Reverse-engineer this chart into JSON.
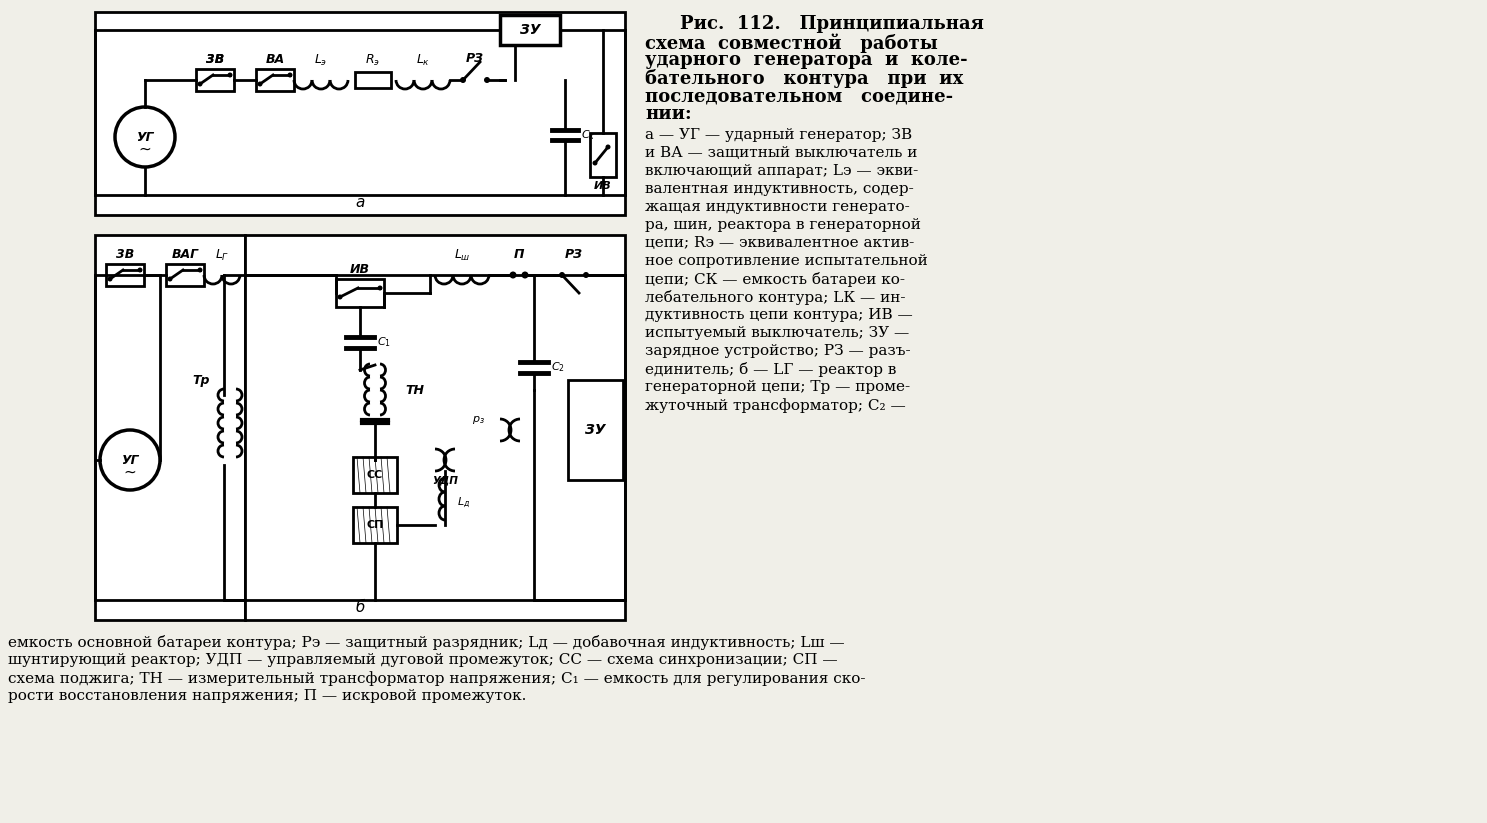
{
  "bg_color": "#f0efe8",
  "lw": 2.0,
  "title_lines": [
    "Рис.  112.   Принципиальная",
    "схема  совместной   работы",
    "ударного  генератора  и  коле-",
    "бательного   контура   при  их",
    "последовательном   соедине-",
    "нии:"
  ],
  "desc_lines": [
    "a — УГ — ударный генератор; ЗВ",
    "и ВА — защитный выключатель и",
    "включающий аппарат; Lэ — экви-",
    "валентная индуктивность, содер-",
    "жащая индуктивности генерато-",
    "ра, шин, реактора в генераторной",
    "цепи; Rэ — эквивалентное актив-",
    "ное сопротивление испытательной",
    "цепи; CК — емкость батареи ко-",
    "лебательного контура; LК — ин-",
    "дуктивность цепи контура; ИВ —",
    "испытуемый выключатель; ЗУ —",
    "зарядное устройство; РЗ — разъ-",
    "единитель; б — LГ — реактор в",
    "генераторной цепи; Тр — проме-",
    "жуточный трансформатор; C₂ —"
  ],
  "bottom_lines": [
    "емкость основной батареи контура; Pэ — защитный разрядник; Lд — добавочная индуктивность; Lш —",
    "шунтирующий реактор; УДП — управляемый дуговой промежуток; CC — схема синхронизации; СП —",
    "схема поджига; ТН — измерительный трансформатор напряжения; C₁ — емкость для регулирования ско-",
    "рости восстановления напряжения; П — искровой промежуток."
  ]
}
